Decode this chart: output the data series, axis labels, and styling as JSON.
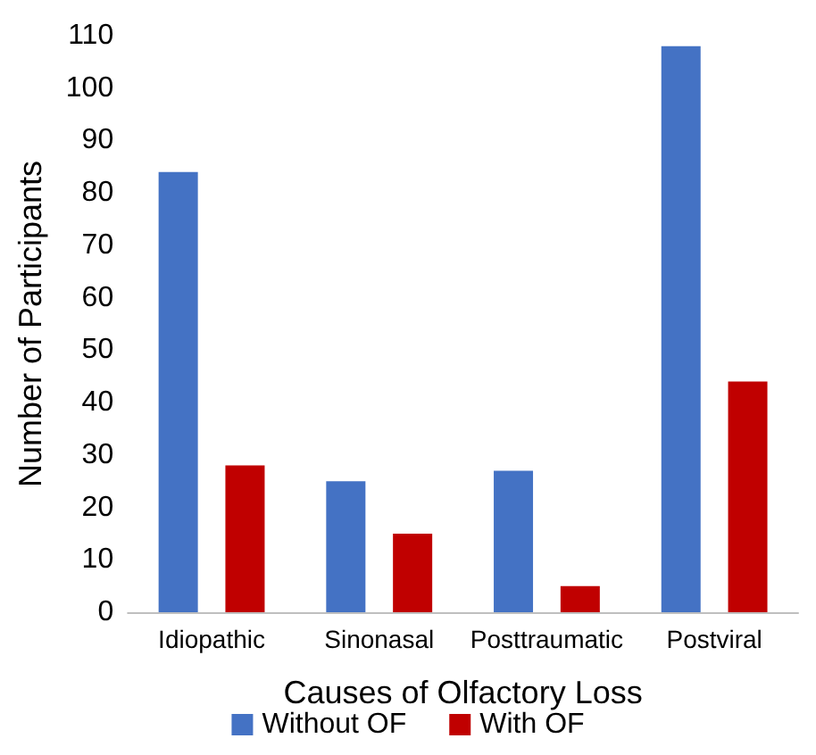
{
  "chart_data": {
    "type": "bar",
    "xlabel": "Causes of Olfactory Loss",
    "ylabel": "Number of Participants",
    "categories": [
      "Idiopathic",
      "Sinonasal",
      "Posttraumatic",
      "Postviral"
    ],
    "series": [
      {
        "name": "Without OF",
        "color": "#4472c4",
        "values": [
          84,
          25,
          27,
          108
        ]
      },
      {
        "name": "With OF",
        "color": "#c00000",
        "values": [
          28,
          15,
          5,
          44
        ]
      }
    ],
    "ylim": [
      0,
      110
    ],
    "yticks": [
      0,
      10,
      20,
      30,
      40,
      50,
      60,
      70,
      80,
      90,
      100,
      110
    ],
    "grid": false,
    "legend": "bottom"
  }
}
